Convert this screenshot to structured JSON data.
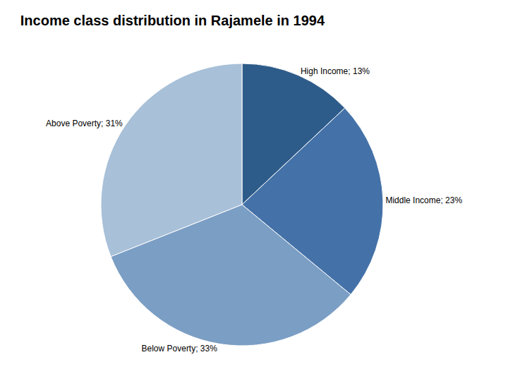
{
  "chart_data": {
    "type": "pie",
    "title": "Income class distribution in Rajamele in 1994",
    "categories": [
      "High Income",
      "Middle Income",
      "Below Poverty",
      "Above Poverty"
    ],
    "values": [
      13,
      23,
      33,
      31
    ],
    "value_labels": [
      "High Income; 13%",
      "Middle Income; 23%",
      "Below Poverty; 33%",
      "Above Poverty; 31%"
    ],
    "colors": [
      "#2E5C8A",
      "#4472A8",
      "#7B9EC4",
      "#A8C0D8"
    ]
  }
}
